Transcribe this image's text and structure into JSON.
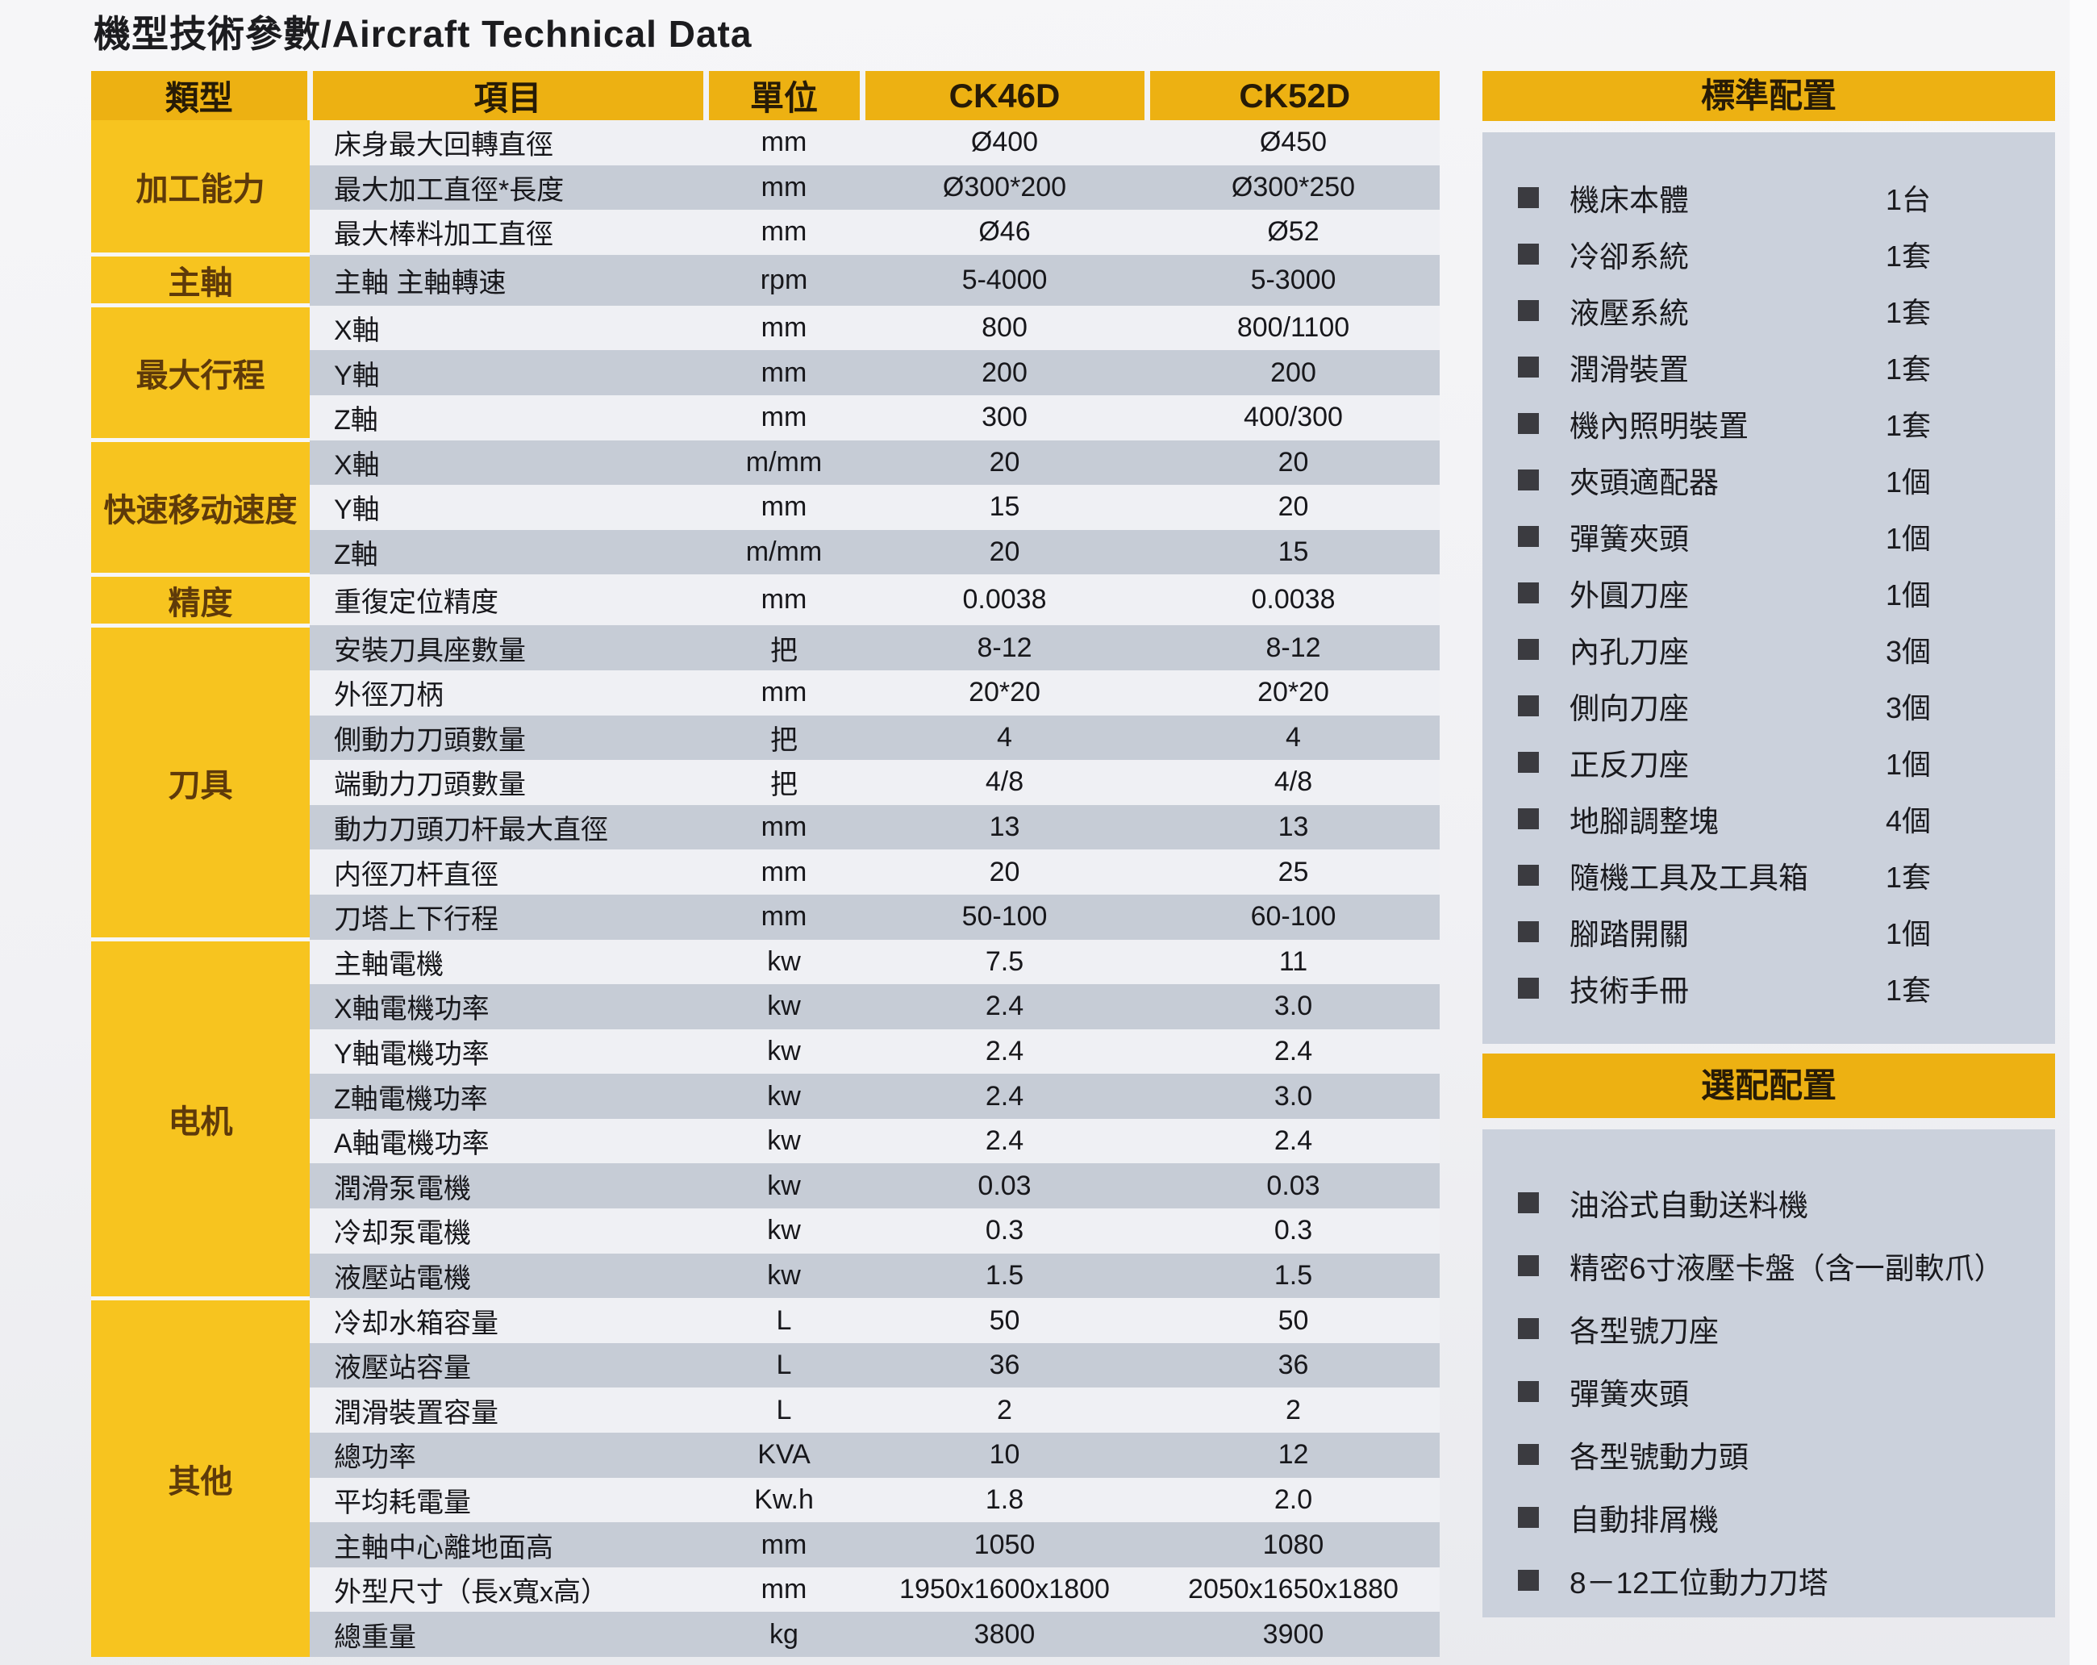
{
  "title": "機型技術參數/Aircraft Technical Data",
  "colors": {
    "header_yellow": "#EDB112",
    "category_yellow": "#F7C41F",
    "stripe_light": "#EFF0F4",
    "stripe_gray": "#C6CCD6",
    "panel_body": "#CBD1DC",
    "header_text": "#271B06"
  },
  "table": {
    "headers": {
      "category": "類型",
      "item": "項目",
      "unit": "單位",
      "col1": "CK46D",
      "col2": "CK52D"
    },
    "groups": [
      {
        "category": "加工能力",
        "rows": [
          {
            "item": "床身最大回轉直徑",
            "unit": "mm",
            "ck46d": "Ø400",
            "ck52d": "Ø450"
          },
          {
            "item": "最大加工直徑*長度",
            "unit": "mm",
            "ck46d": "Ø300*200",
            "ck52d": "Ø300*250"
          },
          {
            "item": "最大棒料加工直徑",
            "unit": "mm",
            "ck46d": "Ø46",
            "ck52d": "Ø52"
          }
        ]
      },
      {
        "category": "主軸",
        "rows": [
          {
            "item": "主軸 主軸轉速",
            "unit": "rpm",
            "ck46d": "5-4000",
            "ck52d": "5-3000"
          }
        ]
      },
      {
        "category": "最大行程",
        "rows": [
          {
            "item": "X軸",
            "unit": "mm",
            "ck46d": "800",
            "ck52d": "800/1100"
          },
          {
            "item": "Y軸",
            "unit": "mm",
            "ck46d": "200",
            "ck52d": "200"
          },
          {
            "item": "Z軸",
            "unit": "mm",
            "ck46d": "300",
            "ck52d": "400/300"
          }
        ]
      },
      {
        "category": "快速移动速度",
        "rows": [
          {
            "item": "X軸",
            "unit": "m/mm",
            "ck46d": "20",
            "ck52d": "20"
          },
          {
            "item": "Y軸",
            "unit": "mm",
            "ck46d": "15",
            "ck52d": "20"
          },
          {
            "item": "Z軸",
            "unit": "m/mm",
            "ck46d": "20",
            "ck52d": "15"
          }
        ]
      },
      {
        "category": "精度",
        "rows": [
          {
            "item": "重復定位精度",
            "unit": "mm",
            "ck46d": "0.0038",
            "ck52d": "0.0038"
          }
        ]
      },
      {
        "category": "刀具",
        "rows": [
          {
            "item": "安裝刀具座數量",
            "unit": "把",
            "ck46d": "8-12",
            "ck52d": "8-12"
          },
          {
            "item": "外徑刀柄",
            "unit": "mm",
            "ck46d": "20*20",
            "ck52d": "20*20"
          },
          {
            "item": "側動力刀頭數量",
            "unit": "把",
            "ck46d": "4",
            "ck52d": "4"
          },
          {
            "item": "端動力刀頭數量",
            "unit": "把",
            "ck46d": "4/8",
            "ck52d": "4/8"
          },
          {
            "item": "動力刀頭刀杆最大直徑",
            "unit": "mm",
            "ck46d": "13",
            "ck52d": "13"
          },
          {
            "item": "内徑刀杆直徑",
            "unit": "mm",
            "ck46d": "20",
            "ck52d": "25"
          },
          {
            "item": "刀塔上下行程",
            "unit": "mm",
            "ck46d": "50-100",
            "ck52d": "60-100"
          }
        ]
      },
      {
        "category": "电机",
        "rows": [
          {
            "item": "主軸電機",
            "unit": "kw",
            "ck46d": "7.5",
            "ck52d": "11"
          },
          {
            "item": "X軸電機功率",
            "unit": "kw",
            "ck46d": "2.4",
            "ck52d": "3.0"
          },
          {
            "item": "Y軸電機功率",
            "unit": "kw",
            "ck46d": "2.4",
            "ck52d": "2.4"
          },
          {
            "item": "Z軸電機功率",
            "unit": "kw",
            "ck46d": "2.4",
            "ck52d": "3.0"
          },
          {
            "item": "A軸電機功率",
            "unit": "kw",
            "ck46d": "2.4",
            "ck52d": "2.4"
          },
          {
            "item": "潤滑泵電機",
            "unit": "kw",
            "ck46d": "0.03",
            "ck52d": "0.03"
          },
          {
            "item": "冷却泵電機",
            "unit": "kw",
            "ck46d": "0.3",
            "ck52d": "0.3"
          },
          {
            "item": "液壓站電機",
            "unit": "kw",
            "ck46d": "1.5",
            "ck52d": "1.5"
          }
        ]
      },
      {
        "category": "其他",
        "rows": [
          {
            "item": "冷却水箱容量",
            "unit": "L",
            "ck46d": "50",
            "ck52d": "50"
          },
          {
            "item": "液壓站容量",
            "unit": "L",
            "ck46d": "36",
            "ck52d": "36"
          },
          {
            "item": "潤滑裝置容量",
            "unit": "L",
            "ck46d": "2",
            "ck52d": "2"
          },
          {
            "item": "總功率",
            "unit": "KVA",
            "ck46d": "10",
            "ck52d": "12"
          },
          {
            "item": "平均耗電量",
            "unit": "Kw.h",
            "ck46d": "1.8",
            "ck52d": "2.0"
          },
          {
            "item": "主軸中心離地面高",
            "unit": "mm",
            "ck46d": "1050",
            "ck52d": "1080"
          },
          {
            "item": "外型尺寸（長x寬x高）",
            "unit": "mm",
            "ck46d": "1950x1600x1800",
            "ck52d": "2050x1650x1880"
          },
          {
            "item": "總重量",
            "unit": "kg",
            "ck46d": "3800",
            "ck52d": "3900"
          }
        ]
      }
    ]
  },
  "standard_config": {
    "title": "標準配置",
    "items": [
      {
        "label": "機床本體",
        "qty": "1台"
      },
      {
        "label": "冷卻系統",
        "qty": "1套"
      },
      {
        "label": "液壓系統",
        "qty": "1套"
      },
      {
        "label": "潤滑裝置",
        "qty": "1套"
      },
      {
        "label": "機內照明裝置",
        "qty": "1套"
      },
      {
        "label": "夾頭適配器",
        "qty": "1個"
      },
      {
        "label": "彈簧夾頭",
        "qty": "1個"
      },
      {
        "label": "外圓刀座",
        "qty": "1個"
      },
      {
        "label": "內孔刀座",
        "qty": "3個"
      },
      {
        "label": "側向刀座",
        "qty": "3個"
      },
      {
        "label": "正反刀座",
        "qty": "1個"
      },
      {
        "label": "地腳調整塊",
        "qty": "4個"
      },
      {
        "label": "隨機工具及工具箱",
        "qty": "1套"
      },
      {
        "label": "腳踏開關",
        "qty": "1個"
      },
      {
        "label": "技術手冊",
        "qty": "1套"
      }
    ]
  },
  "optional_config": {
    "title": "選配配置",
    "items": [
      {
        "label": "油浴式自動送料機"
      },
      {
        "label": "精密6寸液壓卡盤（含一副軟爪）"
      },
      {
        "label": "各型號刀座"
      },
      {
        "label": "彈簧夾頭"
      },
      {
        "label": "各型號動力頭"
      },
      {
        "label": "自動排屑機"
      },
      {
        "label": "8－12工位動力刀塔"
      }
    ]
  }
}
